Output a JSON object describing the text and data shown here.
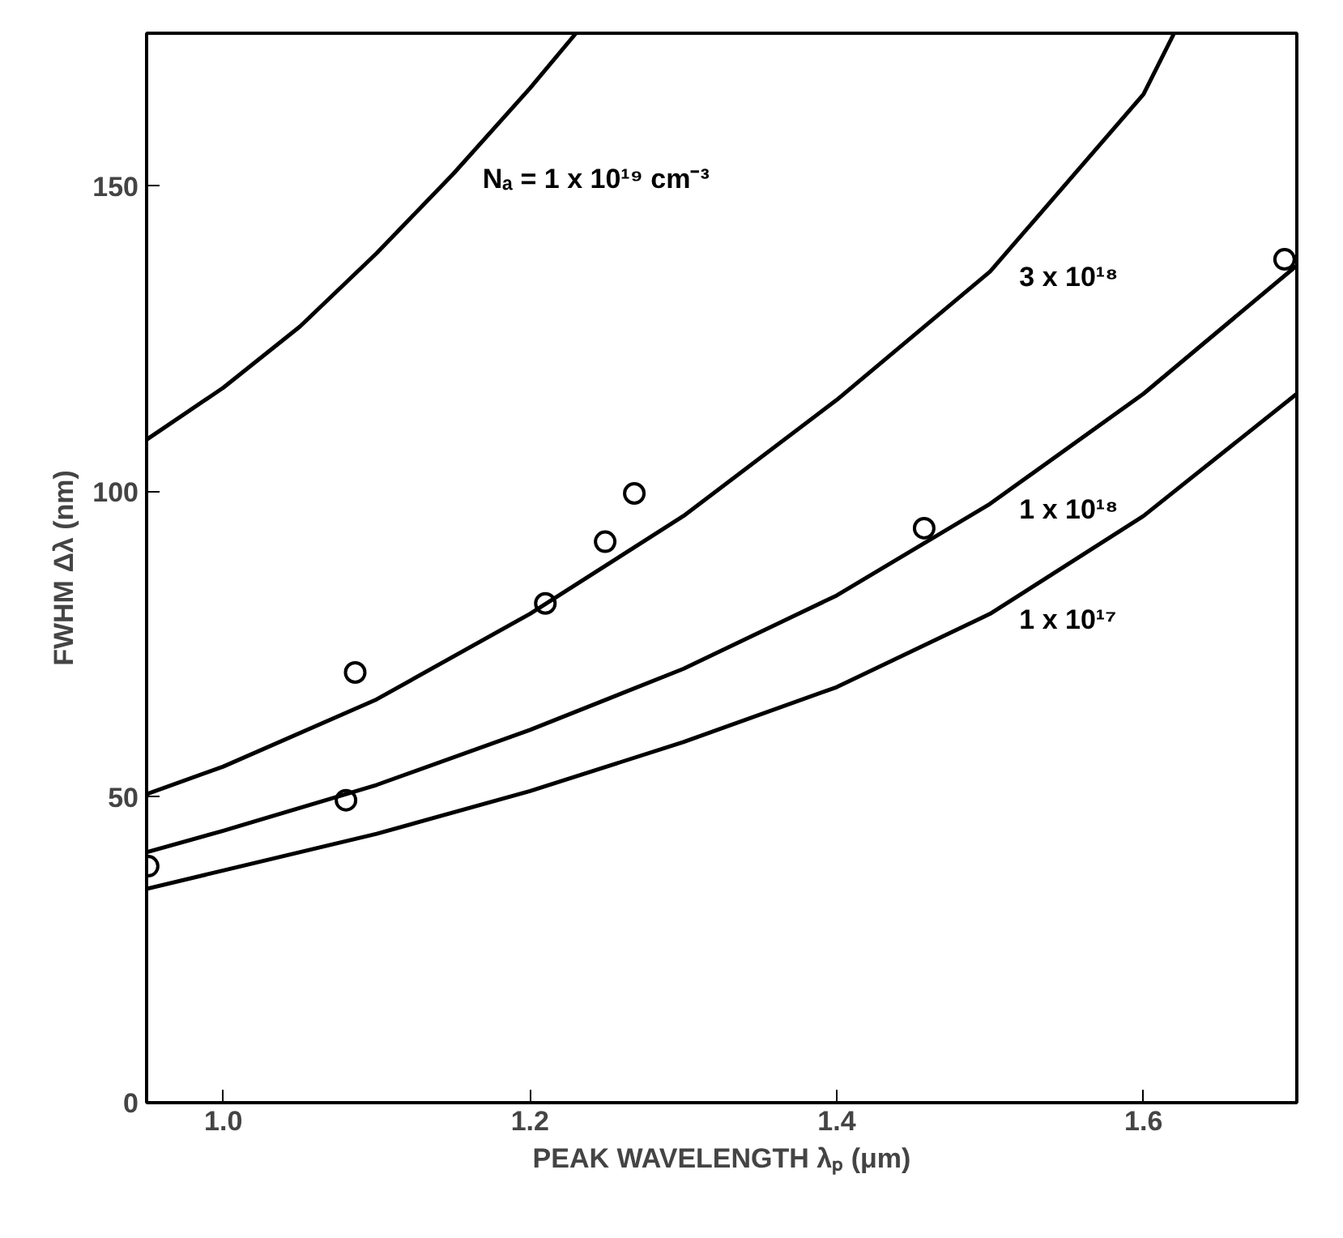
{
  "chart_data": {
    "type": "line",
    "xlabel": "PEAK WAVELENGTH λₚ (μm)",
    "ylabel": "FWHM Δλ (nm)",
    "xlim": [
      0.95,
      1.7
    ],
    "ylim": [
      0,
      175
    ],
    "xticks": [
      {
        "value": 1.0,
        "label": "1.0"
      },
      {
        "value": 1.2,
        "label": "1.2"
      },
      {
        "value": 1.4,
        "label": "1.4"
      },
      {
        "value": 1.6,
        "label": "1.6"
      }
    ],
    "yticks": [
      0,
      50,
      100,
      150
    ],
    "grid": false,
    "series": [
      {
        "name": "Nₐ = 1 x 10¹⁹ cm⁻³",
        "color": "#000000",
        "x": [
          0.95,
          1.0,
          1.05,
          1.1,
          1.15,
          1.2,
          1.23
        ],
        "values": [
          108.5,
          117,
          127,
          139,
          152,
          166,
          175
        ]
      },
      {
        "name": "3 x 10¹⁸",
        "color": "#000000",
        "x": [
          0.95,
          1.0,
          1.1,
          1.2,
          1.3,
          1.4,
          1.5,
          1.6,
          1.62
        ],
        "values": [
          50.5,
          55,
          66,
          80,
          96,
          115,
          136,
          165,
          175
        ]
      },
      {
        "name": "1 x 10¹⁸",
        "color": "#000000",
        "x": [
          0.95,
          1.0,
          1.1,
          1.2,
          1.3,
          1.4,
          1.5,
          1.6,
          1.7
        ],
        "values": [
          41,
          44.5,
          52,
          61,
          71,
          83,
          98,
          116,
          137
        ]
      },
      {
        "name": "1 x 10¹⁷",
        "color": "#000000",
        "x": [
          0.95,
          1.0,
          1.1,
          1.2,
          1.3,
          1.4,
          1.5,
          1.6,
          1.7
        ],
        "values": [
          35,
          38,
          44,
          51,
          59,
          68,
          80,
          96,
          116
        ]
      },
      {
        "type": "scatter",
        "marker": "circle",
        "color": "#000000",
        "x": [
          0.951,
          1.08,
          1.086,
          1.21,
          1.249,
          1.268,
          1.457,
          1.692
        ],
        "values": [
          38.7,
          49.5,
          70.4,
          81.7,
          91.8,
          99.7,
          94,
          138
        ]
      }
    ]
  }
}
